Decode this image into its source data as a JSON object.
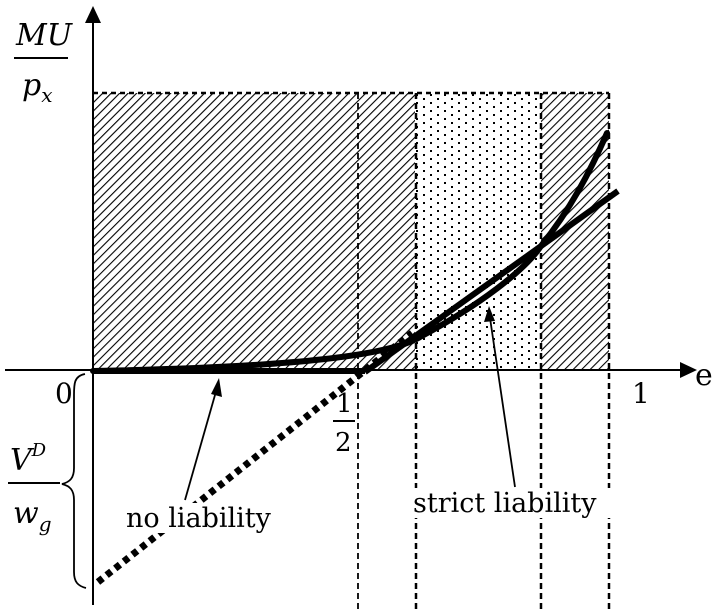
{
  "labels": {
    "y_numerator": "MU",
    "y_denominator_base": "p",
    "y_denominator_sub": "x",
    "x_axis": "e",
    "origin": "0",
    "one": "1",
    "half_num": "1",
    "half_den": "2",
    "v_base": "V",
    "v_sup": "D",
    "w_base": "w",
    "w_sub": "g",
    "no_liability": "no liability",
    "strict_liability": "strict liability"
  },
  "colors": {
    "ink": "#000000",
    "background": "#ffffff"
  }
}
